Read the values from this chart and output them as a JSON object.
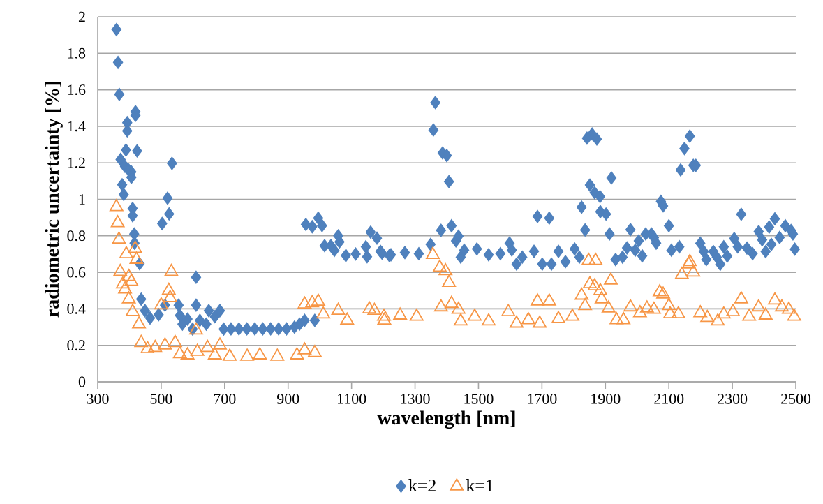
{
  "chart_data": {
    "type": "scatter",
    "xlabel": "wavelength [nm]",
    "ylabel": "radiometric uncertainty [%]",
    "xlim": [
      300,
      2500
    ],
    "xticks": [
      300,
      500,
      700,
      900,
      1100,
      1300,
      1500,
      1700,
      1900,
      2100,
      2300,
      2500
    ],
    "ylim": [
      0,
      2
    ],
    "yticks": [
      0,
      0.2,
      0.4,
      0.6,
      0.8,
      1,
      1.2,
      1.4,
      1.6,
      1.8,
      2
    ],
    "grid": "y",
    "legend": "bottom",
    "series": [
      {
        "name": "k=2",
        "color": "#4f81bd",
        "marker": "diamond",
        "x": [
          359,
          364,
          368,
          372,
          377,
          382,
          386,
          389,
          393,
          393,
          398,
          406,
          406,
          410,
          410,
          415,
          416,
          419,
          419,
          424,
          432,
          437,
          449,
          465,
          492,
          503,
          512,
          520,
          525,
          534,
          555,
          559,
          567,
          583,
          599,
          610,
          610,
          622,
          642,
          650,
          669,
          685,
          697,
          720,
          745,
          770,
          795,
          820,
          845,
          870,
          895,
          920,
          936,
          952,
          956,
          976,
          984,
          995,
          1007,
          1015,
          1035,
          1046,
          1058,
          1062,
          1082,
          1113,
          1145,
          1149,
          1160,
          1180,
          1191,
          1196,
          1219,
          1224,
          1268,
          1312,
          1349,
          1358,
          1364,
          1382,
          1387,
          1400,
          1407,
          1415,
          1429,
          1437,
          1444,
          1455,
          1495,
          1532,
          1569,
          1598,
          1605,
          1620,
          1638,
          1675,
          1686,
          1701,
          1723,
          1730,
          1752,
          1774,
          1803,
          1818,
          1825,
          1836,
          1842,
          1851,
          1858,
          1866,
          1873,
          1883,
          1884,
          1902,
          1913,
          1919,
          1932,
          1954,
          1968,
          1979,
          1994,
          2005,
          2016,
          2027,
          2045,
          2053,
          2060,
          2075,
          2082,
          2100,
          2108,
          2133,
          2137,
          2149,
          2166,
          2177,
          2185,
          2199,
          2210,
          2218,
          2240,
          2251,
          2262,
          2273,
          2284,
          2306,
          2317,
          2328,
          2346,
          2364,
          2383,
          2394,
          2405,
          2416,
          2423,
          2434,
          2449,
          2467,
          2485,
          2491,
          2497
        ],
        "values": [
          1.93,
          1.75,
          1.575,
          1.218,
          1.08,
          1.026,
          1.18,
          1.27,
          1.42,
          1.375,
          1.16,
          1.15,
          1.12,
          0.95,
          0.91,
          0.81,
          0.76,
          1.48,
          1.46,
          1.265,
          0.647,
          0.453,
          0.39,
          0.35,
          0.368,
          0.867,
          0.42,
          1.006,
          0.92,
          1.197,
          0.42,
          0.364,
          0.316,
          0.344,
          0.289,
          0.573,
          0.42,
          0.337,
          0.316,
          0.39,
          0.357,
          0.39,
          0.289,
          0.29,
          0.29,
          0.29,
          0.29,
          0.29,
          0.29,
          0.29,
          0.29,
          0.3,
          0.316,
          0.337,
          0.862,
          0.85,
          0.337,
          0.897,
          0.856,
          0.746,
          0.746,
          0.72,
          0.8,
          0.767,
          0.692,
          0.7,
          0.74,
          0.685,
          0.82,
          0.787,
          0.715,
          0.705,
          0.692,
          0.696,
          0.708,
          0.702,
          0.753,
          1.38,
          1.53,
          0.83,
          1.254,
          1.24,
          1.097,
          0.855,
          0.772,
          0.798,
          0.683,
          0.721,
          0.728,
          0.696,
          0.702,
          0.76,
          0.722,
          0.645,
          0.683,
          0.715,
          0.906,
          0.645,
          0.897,
          0.645,
          0.715,
          0.658,
          0.728,
          0.683,
          0.957,
          0.832,
          1.335,
          1.078,
          1.358,
          1.036,
          1.33,
          1.015,
          0.932,
          0.919,
          0.81,
          1.117,
          0.67,
          0.683,
          0.734,
          0.834,
          0.721,
          0.772,
          0.69,
          0.81,
          0.81,
          0.79,
          0.76,
          0.989,
          0.964,
          0.855,
          0.721,
          0.74,
          1.161,
          1.278,
          1.346,
          1.186,
          1.186,
          0.759,
          0.714,
          0.67,
          0.714,
          0.683,
          0.644,
          0.74,
          0.689,
          0.785,
          0.74,
          0.918,
          0.733,
          0.702,
          0.823,
          0.778,
          0.714,
          0.848,
          0.753,
          0.893,
          0.791,
          0.855,
          0.829,
          0.81,
          0.727
        ]
      },
      {
        "name": "k=1",
        "color": "#f79646",
        "marker": "triangle",
        "x": [
          359,
          363,
          367,
          371,
          379,
          386,
          390,
          398,
          398,
          406,
          410,
          418,
          422,
          430,
          437,
          457,
          481,
          500,
          512,
          524,
          528,
          532,
          544,
          559,
          583,
          610,
          614,
          646,
          669,
          685,
          716,
          771,
          811,
          866,
          928,
          952,
          952,
          976,
          984,
          995,
          1011,
          1058,
          1086,
          1156,
          1172,
          1202,
          1203,
          1253,
          1305,
          1356,
          1378,
          1382,
          1396,
          1407,
          1415,
          1437,
          1444,
          1488,
          1532,
          1594,
          1620,
          1657,
          1686,
          1693,
          1723,
          1752,
          1796,
          1825,
          1836,
          1847,
          1851,
          1866,
          1869,
          1884,
          1888,
          1910,
          1917,
          1935,
          1957,
          1979,
          2009,
          2031,
          2053,
          2071,
          2082,
          2100,
          2104,
          2130,
          2141,
          2163,
          2166,
          2177,
          2199,
          2221,
          2254,
          2273,
          2302,
          2328,
          2353,
          2383,
          2405,
          2434,
          2456,
          2478,
          2495
        ],
        "values": [
          0.958,
          0.87,
          0.78,
          0.603,
          0.535,
          0.507,
          0.7,
          0.576,
          0.453,
          0.549,
          0.384,
          0.73,
          0.67,
          0.316,
          0.214,
          0.18,
          0.187,
          0.42,
          0.2,
          0.5,
          0.46,
          0.603,
          0.214,
          0.152,
          0.146,
          0.282,
          0.166,
          0.187,
          0.146,
          0.2,
          0.139,
          0.139,
          0.146,
          0.139,
          0.146,
          0.173,
          0.425,
          0.432,
          0.159,
          0.44,
          0.37,
          0.39,
          0.337,
          0.398,
          0.39,
          0.358,
          0.337,
          0.364,
          0.358,
          0.696,
          0.626,
          0.409,
          0.607,
          0.543,
          0.428,
          0.396,
          0.332,
          0.358,
          0.332,
          0.383,
          0.32,
          0.339,
          0.441,
          0.32,
          0.441,
          0.345,
          0.358,
          0.473,
          0.416,
          0.664,
          0.536,
          0.524,
          0.664,
          0.498,
          0.453,
          0.403,
          0.556,
          0.339,
          0.339,
          0.409,
          0.377,
          0.403,
          0.396,
          0.492,
          0.479,
          0.416,
          0.371,
          0.371,
          0.587,
          0.644,
          0.657,
          0.6,
          0.377,
          0.351,
          0.332,
          0.37,
          0.383,
          0.453,
          0.358,
          0.409,
          0.364,
          0.447,
          0.409,
          0.396,
          0.358
        ]
      }
    ]
  }
}
